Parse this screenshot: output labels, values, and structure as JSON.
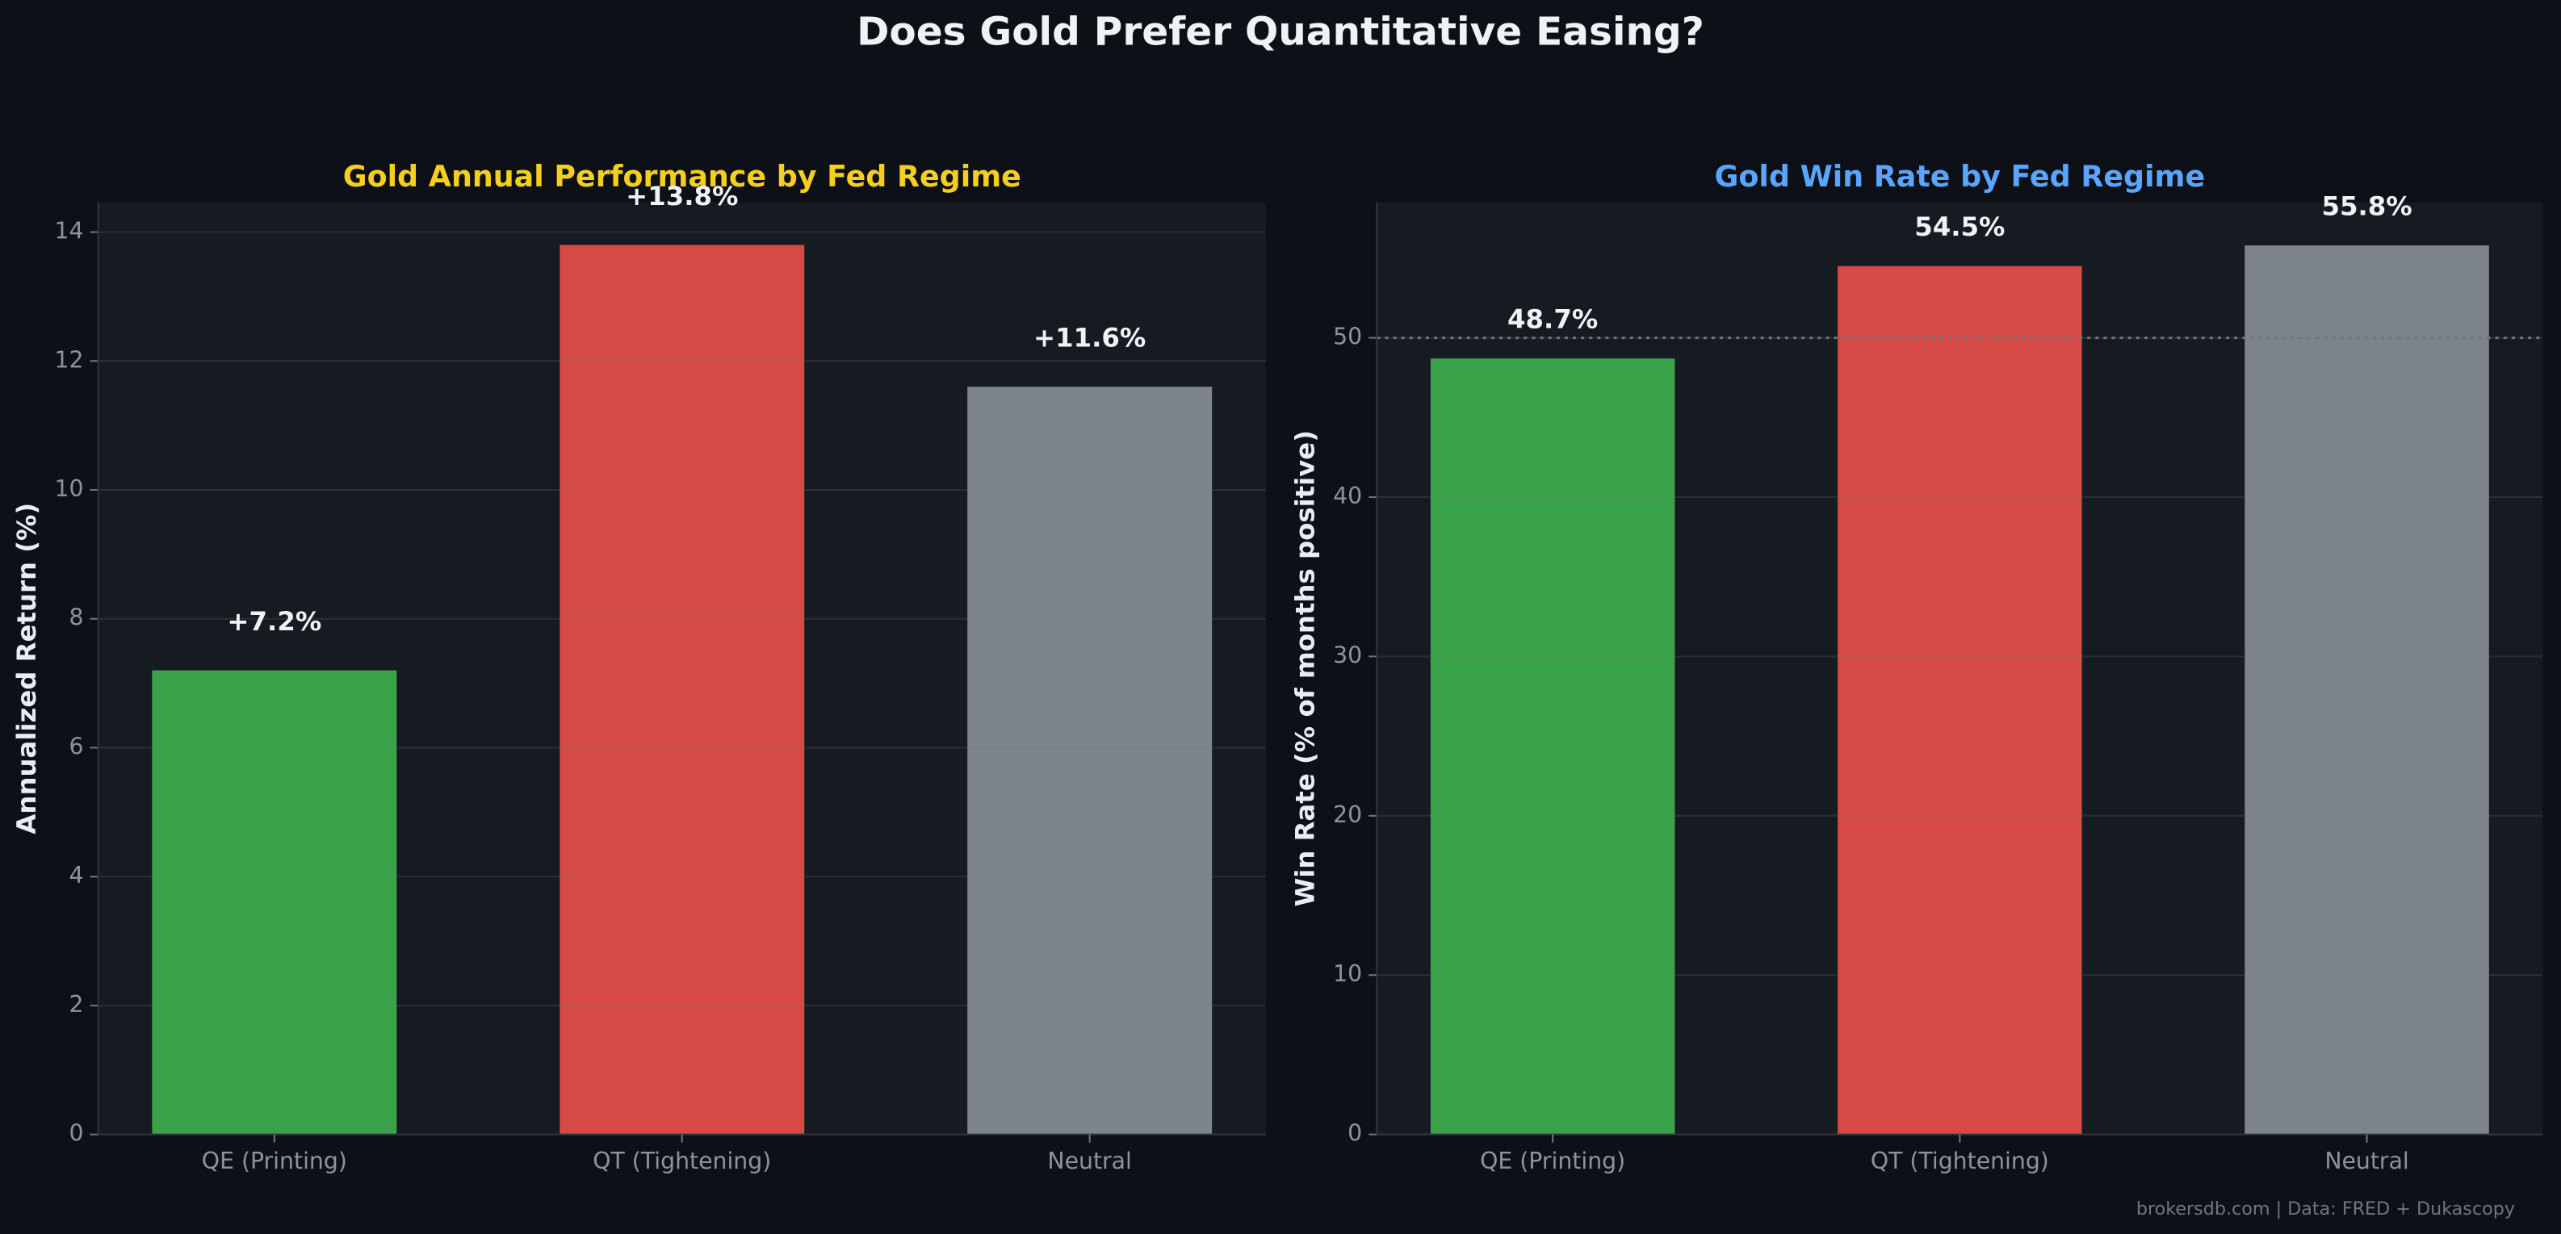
{
  "title": "Does Gold Prefer Quantitative Easing?",
  "footer": "brokersdb.com  |  Data: FRED + Dukascopy",
  "chart_data": [
    {
      "type": "bar",
      "title": "Gold Annual Performance by Fed Regime",
      "title_color": "#f5cf1f",
      "y_label": "Annualized Return (%)",
      "categories": [
        "QE (Printing)",
        "QT (Tightening)",
        "Neutral"
      ],
      "values": [
        7.2,
        13.8,
        11.6
      ],
      "value_labels": [
        "+7.2%",
        "+13.8%",
        "+11.6%"
      ],
      "colors": [
        "#3aa34a",
        "#d64a45",
        "#7d848c"
      ],
      "ylim": [
        0,
        14.46
      ],
      "yticks": [
        0,
        2,
        4,
        6,
        8,
        10,
        12,
        14
      ],
      "grid": true
    },
    {
      "type": "bar",
      "title": "Gold Win Rate by Fed Regime",
      "title_color": "#58a6ff",
      "y_label": "Win Rate (% of months positive)",
      "categories": [
        "QE (Printing)",
        "QT (Tightening)",
        "Neutral"
      ],
      "values": [
        48.7,
        54.5,
        55.8
      ],
      "value_labels": [
        "48.7%",
        "54.5%",
        "55.8%"
      ],
      "colors": [
        "#3aa34a",
        "#d64a45",
        "#7d848c"
      ],
      "ylim": [
        0,
        58.5
      ],
      "yticks": [
        0,
        10,
        20,
        30,
        40,
        50
      ],
      "grid": true,
      "hline": 50
    }
  ]
}
